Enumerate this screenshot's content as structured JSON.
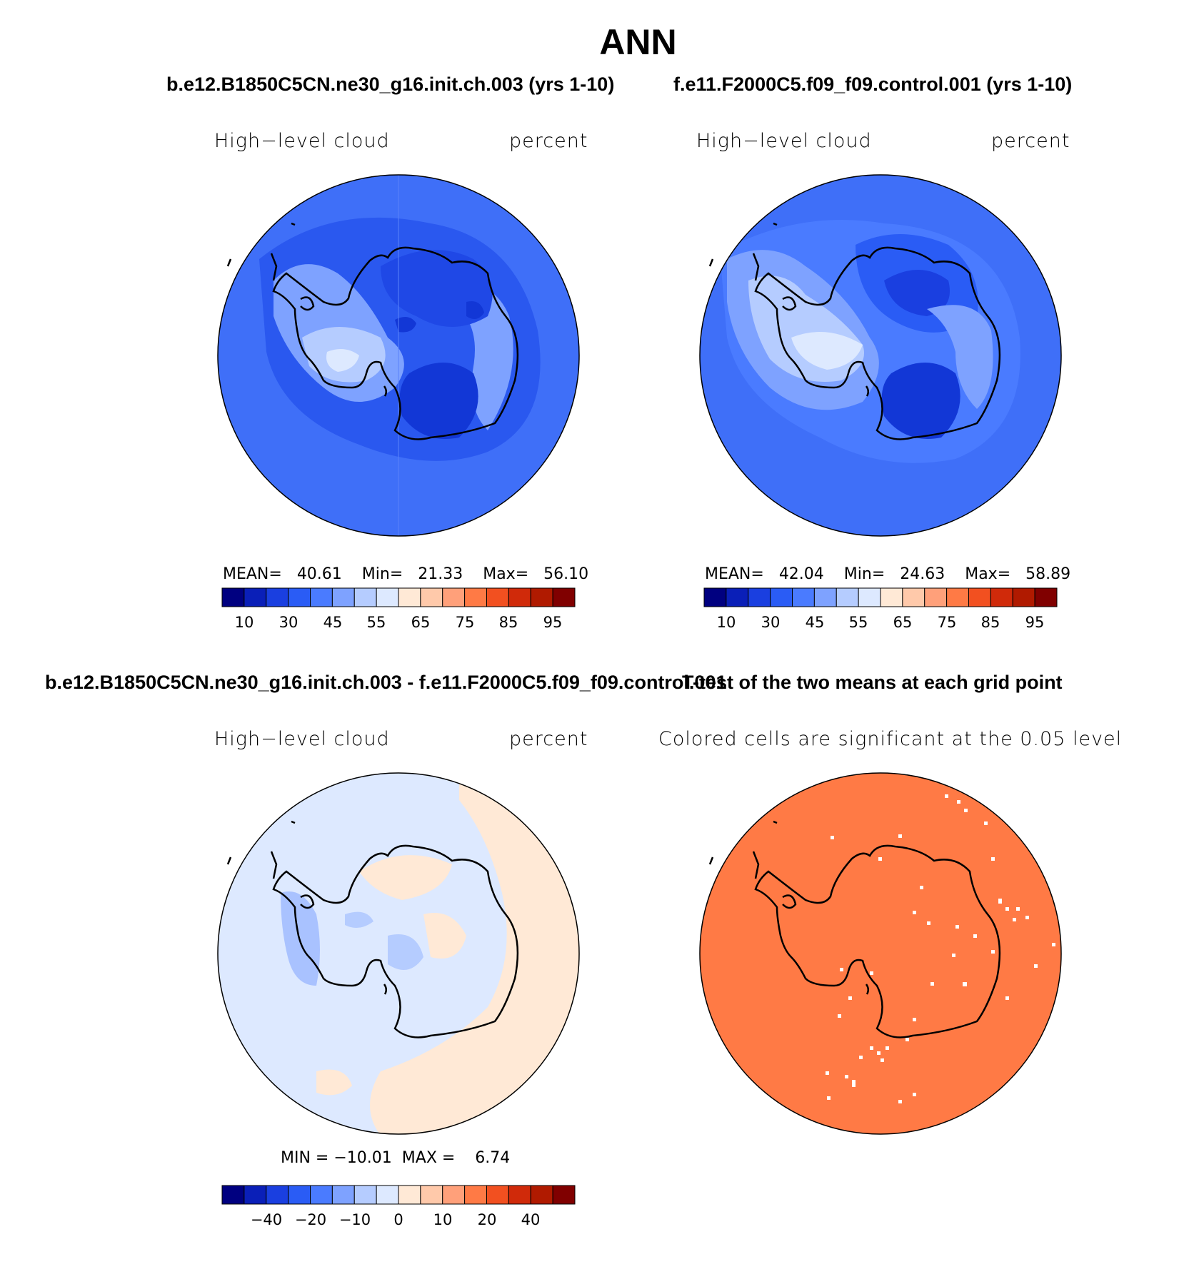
{
  "title": "ANN",
  "panels": [
    {
      "id": "test",
      "case_title": "b.e12.B1850C5CN.ne30_g16.init.ch.003 (yrs 1-10)",
      "variable": "High−level cloud",
      "units": "percent",
      "stats": {
        "mean_label": "MEAN=",
        "mean": "40.61",
        "min_label": "Min=",
        "min": "21.33",
        "max_label": "Max=",
        "max": "56.10"
      },
      "colorbar_ticks": [
        "10",
        "30",
        "45",
        "55",
        "65",
        "75",
        "85",
        "95"
      ]
    },
    {
      "id": "control",
      "case_title": "f.e11.F2000C5.f09_f09.control.001 (yrs 1-10)",
      "variable": "High−level cloud",
      "units": "percent",
      "stats": {
        "mean_label": "MEAN=",
        "mean": "42.04",
        "min_label": "Min=",
        "min": "24.63",
        "max_label": "Max=",
        "max": "58.89"
      },
      "colorbar_ticks": [
        "10",
        "30",
        "45",
        "55",
        "65",
        "75",
        "85",
        "95"
      ]
    },
    {
      "id": "difference",
      "case_title": "b.e12.B1850C5CN.ne30_g16.init.ch.003 - f.e11.F2000C5.f09_f09.control.001",
      "variable": "High−level cloud",
      "units": "percent",
      "stats": {
        "min_label": "MIN =",
        "min": "−10.01",
        "max_label": "MAX =",
        "max": "6.74"
      },
      "colorbar_ticks": [
        "−40",
        "−20",
        "−10",
        "0",
        "10",
        "20",
        "40"
      ]
    },
    {
      "id": "ttest",
      "case_title": "T-test of the two means at each grid point",
      "subtitle": "Colored cells are significant at the 0.05 level"
    }
  ],
  "colors": {
    "abs_scale": [
      "#000080",
      "#0a1fb8",
      "#1a3fe0",
      "#2a5cf5",
      "#4a7bff",
      "#7ea2ff",
      "#b5ccff",
      "#dde9ff",
      "#ffe9d6",
      "#ffc9aa",
      "#ffa07a",
      "#ff7a45",
      "#f25020",
      "#d02a0a",
      "#b01a00",
      "#800000"
    ],
    "diff_scale": [
      "#000080",
      "#0a1fb8",
      "#1a3fe0",
      "#2a5cf5",
      "#4a7bff",
      "#7ea2ff",
      "#b5ccff",
      "#dde9ff",
      "#ffe9d6",
      "#ffc9aa",
      "#ffa07a",
      "#ff7a45",
      "#f25020",
      "#d02a0a",
      "#b01a00",
      "#800000"
    ],
    "significant": "#ff7a45"
  }
}
